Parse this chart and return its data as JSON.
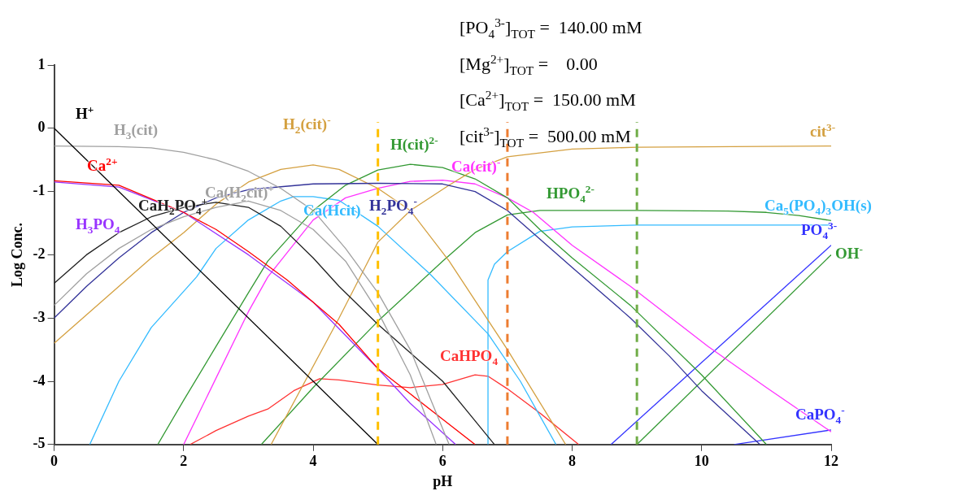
{
  "chart_data": {
    "type": "line",
    "xlabel": "pH",
    "ylabel": "Log Conc.",
    "xlim": [
      0,
      12
    ],
    "ylim": [
      -5,
      1
    ],
    "xticks": [
      0,
      2,
      4,
      6,
      8,
      10,
      12
    ],
    "yticks": [
      -5,
      -4,
      -3,
      -2,
      -1,
      0,
      1
    ],
    "grid": false,
    "legend": false,
    "marker": "none",
    "series": [
      {
        "name": "H$^{+}$",
        "color": "#000000",
        "x": [
          0,
          5
        ],
        "values": [
          0,
          -5
        ]
      },
      {
        "name": "H$_{3}$(cit)",
        "color": "#a0a0a0",
        "x": [
          0,
          1,
          1.5,
          2,
          2.5,
          3,
          3.5,
          4,
          4.5,
          5,
          5.5,
          6.1
        ],
        "values": [
          -0.28,
          -0.29,
          -0.31,
          -0.38,
          -0.5,
          -0.68,
          -0.95,
          -1.3,
          -1.9,
          -2.6,
          -3.5,
          -5
        ]
      },
      {
        "name": "Ca(H$_{2}$cit)$^{+}$",
        "color": "#a0a0a0",
        "x": [
          0,
          0.5,
          1,
          1.5,
          2,
          2.5,
          3,
          3.5,
          4,
          4.5,
          5,
          5.5,
          5.9
        ],
        "values": [
          -2.8,
          -2.3,
          -1.9,
          -1.6,
          -1.4,
          -1.25,
          -1.15,
          -1.3,
          -1.6,
          -2.1,
          -2.9,
          -3.9,
          -5
        ]
      },
      {
        "name": "Ca$^{2+}$",
        "color": "#ff0000",
        "x": [
          0,
          1,
          2,
          2.5,
          3,
          3.6,
          4.4,
          5,
          5.5,
          6,
          6.5
        ],
        "values": [
          -0.83,
          -0.9,
          -1.33,
          -1.6,
          -1.95,
          -2.4,
          -3.1,
          -3.8,
          -4.2,
          -4.6,
          -5
        ]
      },
      {
        "name": "H$_{3}$PO$_{4}$",
        "color": "#9933ff",
        "x": [
          0,
          1,
          2,
          3,
          4,
          5,
          5.5,
          6.2
        ],
        "values": [
          -0.85,
          -0.93,
          -1.33,
          -2,
          -2.75,
          -3.8,
          -4.35,
          -5
        ]
      },
      {
        "name": "CaH$_{2}$PO$_{4}$$^{+}$",
        "color": "#202020",
        "x": [
          0,
          0.5,
          1,
          1.5,
          2,
          2.5,
          3,
          3.5,
          4,
          4.4,
          5,
          5.5,
          6,
          6.4,
          6.8
        ],
        "values": [
          -2.45,
          -2,
          -1.65,
          -1.4,
          -1.25,
          -1.17,
          -1.25,
          -1.55,
          -2.05,
          -2.5,
          -3.1,
          -3.55,
          -4,
          -4.5,
          -5
        ]
      },
      {
        "name": "H$_{2}$PO$_{4}$$^{-}$",
        "color": "#333399",
        "x": [
          0,
          0.5,
          1,
          1.5,
          2,
          2.5,
          3,
          4,
          5,
          6,
          6.5,
          7,
          7.5,
          8,
          8.9,
          9.5,
          10,
          10.9
        ],
        "values": [
          -3,
          -2.5,
          -2.05,
          -1.65,
          -1.33,
          -1.1,
          -0.97,
          -0.88,
          -0.87,
          -0.88,
          -1,
          -1.3,
          -1.75,
          -2.2,
          -3,
          -3.6,
          -4.15,
          -5
        ]
      },
      {
        "name": "H$_{2}$(cit)$^{-}$",
        "color": "#d4a040",
        "x": [
          0,
          0.5,
          1,
          1.5,
          2,
          2.5,
          3,
          3.5,
          4,
          4.4,
          5,
          5.5,
          6.1,
          7,
          7.9
        ],
        "values": [
          -3.4,
          -2.95,
          -2.5,
          -2.05,
          -1.65,
          -1.2,
          -0.85,
          -0.65,
          -0.58,
          -0.65,
          -0.95,
          -1.3,
          -2.1,
          -3.5,
          -5
        ]
      },
      {
        "name": "cit$^{3-}$",
        "color": "#d4a040",
        "x": [
          3.35,
          4.4,
          4.8,
          5,
          5.5,
          6.1,
          6.5,
          7,
          8,
          9,
          12
        ],
        "values": [
          -5,
          -3,
          -2.2,
          -1.8,
          -1.3,
          -0.9,
          -0.65,
          -0.45,
          -0.33,
          -0.3,
          -0.28
        ]
      },
      {
        "name": "H(cit)$^{2-}$",
        "color": "#339933",
        "x": [
          1.6,
          2,
          2.5,
          3,
          3.3,
          4,
          4.5,
          5,
          5.5,
          6,
          6.5,
          7,
          7.5,
          8,
          8.9,
          10,
          11
        ],
        "values": [
          -5,
          -4.3,
          -3.45,
          -2.6,
          -2.1,
          -1.3,
          -0.9,
          -0.66,
          -0.57,
          -0.62,
          -0.8,
          -1.1,
          -1.6,
          -2.05,
          -2.8,
          -3.9,
          -5
        ]
      },
      {
        "name": "Ca(Hcit)",
        "color": "#33bbff",
        "x": [
          0.55,
          1,
          1.5,
          2.2,
          2.5,
          3,
          3.5,
          3.7,
          4,
          4.4,
          5,
          5.8,
          6.7,
          7.2,
          7.75
        ],
        "values": [
          -5,
          -4,
          -3.15,
          -2.35,
          -1.9,
          -1.45,
          -1.15,
          -1.08,
          -1.08,
          -1.14,
          -1.55,
          -2.3,
          -3.25,
          -4,
          -5
        ]
      },
      {
        "name": "Ca(cit)$^{-}$",
        "color": "#ff33ff",
        "x": [
          2,
          2.5,
          3,
          3.3,
          4,
          4.5,
          5,
          5.5,
          6,
          6.5,
          7,
          7.4,
          8,
          8.9,
          10.1,
          11,
          12
        ],
        "values": [
          -5,
          -3.95,
          -2.9,
          -2.35,
          -1.45,
          -1.1,
          -0.95,
          -0.84,
          -0.82,
          -0.88,
          -1.1,
          -1.33,
          -1.85,
          -2.5,
          -3.45,
          -4.1,
          -4.8
        ]
      },
      {
        "name": "HPO$_{4}$$^{2-}$",
        "color": "#339933",
        "x": [
          3.2,
          4,
          5,
          6,
          6.5,
          7,
          7.5,
          9,
          10.4,
          11,
          11.5,
          12
        ],
        "values": [
          -5,
          -4.1,
          -3.05,
          -2.1,
          -1.65,
          -1.37,
          -1.3,
          -1.3,
          -1.31,
          -1.33,
          -1.38,
          -1.46
        ]
      },
      {
        "name": "Ca$_{5}$(PO$_{4}$)$_{3}$OH(s)",
        "color": "#33bbff",
        "x": [
          6.7,
          6.7,
          6.8,
          7,
          7.5,
          8,
          9,
          12
        ],
        "values": [
          -5,
          -2.4,
          -2.15,
          -1.95,
          -1.63,
          -1.56,
          -1.53,
          -1.53
        ]
      },
      {
        "name": "CaHPO$_{4}$",
        "color": "#ff3333",
        "x": [
          2.1,
          2.5,
          3,
          3.3,
          3.7,
          4.1,
          4.4,
          5,
          5.5,
          6,
          6.5,
          6.7,
          7,
          7.5,
          8.1
        ],
        "values": [
          -5,
          -4.78,
          -4.55,
          -4.44,
          -4.15,
          -3.96,
          -3.98,
          -4.06,
          -4.1,
          -4.05,
          -3.9,
          -3.92,
          -4.12,
          -4.5,
          -5
        ]
      },
      {
        "name": "PO$_{4}$$^{3-}$",
        "color": "#3333ff",
        "x": [
          8.6,
          12
        ],
        "values": [
          -5,
          -1.85
        ]
      },
      {
        "name": "OH$^{-}$",
        "color": "#339933",
        "x": [
          9,
          12
        ],
        "values": [
          -5,
          -2
        ]
      },
      {
        "name": "CaPO$_{4}$$^{-}$",
        "color": "#3333ff",
        "x": [
          10.5,
          12
        ],
        "values": [
          -5,
          -4.77
        ]
      }
    ],
    "ref_lines": [
      {
        "axis": "x",
        "value": 5,
        "color": "#ffc000",
        "line_style": "dashed"
      },
      {
        "axis": "x",
        "value": 7,
        "color": "#ed7d31",
        "line_style": "dashed"
      },
      {
        "axis": "x",
        "value": 9,
        "color": "#70ad47",
        "line_style": "dashed"
      }
    ],
    "annotations": [
      "[PO$_{4}$$^{3-}$]$_{TOT}$ =  140.00 mM",
      "[Mg$^{2+}$]$_{TOT}$ =    0.00",
      "[Ca$^{2+}$]$_{TOT}$ =  150.00 mM",
      "[cit$^{3-}$]$_{TOT}$ =  500.00 mM"
    ]
  }
}
